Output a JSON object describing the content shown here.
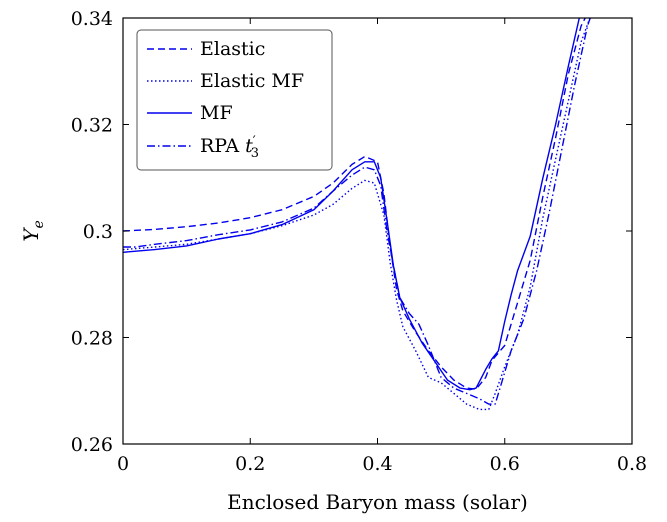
{
  "chart_data": {
    "type": "line",
    "xlabel": "Enclosed Baryon mass (solar)",
    "ylabel": "Y",
    "ylabel_sub": "e",
    "xlim": [
      0,
      0.8
    ],
    "ylim": [
      0.26,
      0.34
    ],
    "x_ticks": [
      "0",
      "0.2",
      "0.4",
      "0.6",
      "0.8"
    ],
    "y_ticks": [
      "0.26",
      "0.28",
      "0.3",
      "0.32",
      "0.34"
    ],
    "grid": false,
    "legend_position": "top-left",
    "line_color": "#0000ee",
    "legend_labels": {
      "elastic": "Elastic",
      "elastic_mf": "Elastic MF",
      "mf": "MF",
      "rpa_main": "RPA ",
      "rpa_t": "t",
      "rpa_prime": "′",
      "rpa_sub": "3"
    },
    "series": [
      {
        "name": "Elastic",
        "dash": "dashed",
        "x": [
          0.0,
          0.05,
          0.1,
          0.15,
          0.2,
          0.25,
          0.3,
          0.33,
          0.36,
          0.38,
          0.4,
          0.41,
          0.42,
          0.43,
          0.44,
          0.46,
          0.48,
          0.5,
          0.52,
          0.54,
          0.555,
          0.57,
          0.58,
          0.6,
          0.62,
          0.64,
          0.66,
          0.68,
          0.7,
          0.72,
          0.735
        ],
        "y": [
          0.3,
          0.3003,
          0.3008,
          0.3015,
          0.3025,
          0.304,
          0.3065,
          0.309,
          0.3125,
          0.314,
          0.313,
          0.307,
          0.297,
          0.289,
          0.285,
          0.281,
          0.2775,
          0.2745,
          0.272,
          0.2705,
          0.2703,
          0.2725,
          0.2757,
          0.2785,
          0.2865,
          0.2945,
          0.3065,
          0.3175,
          0.3295,
          0.3385,
          0.342
        ]
      },
      {
        "name": "Elastic MF",
        "dash": "dotted",
        "x": [
          0.0,
          0.05,
          0.1,
          0.15,
          0.2,
          0.25,
          0.3,
          0.33,
          0.36,
          0.38,
          0.395,
          0.41,
          0.42,
          0.43,
          0.44,
          0.46,
          0.48,
          0.5,
          0.52,
          0.54,
          0.56,
          0.575,
          0.585,
          0.6,
          0.62,
          0.64,
          0.66,
          0.68,
          0.7,
          0.72,
          0.74
        ],
        "y": [
          0.2965,
          0.297,
          0.2975,
          0.2985,
          0.2995,
          0.301,
          0.303,
          0.305,
          0.308,
          0.3095,
          0.309,
          0.303,
          0.294,
          0.287,
          0.282,
          0.2775,
          0.2725,
          0.2715,
          0.2695,
          0.2675,
          0.2665,
          0.2665,
          0.2695,
          0.2745,
          0.2805,
          0.2895,
          0.3025,
          0.3135,
          0.3245,
          0.3355,
          0.342
        ]
      },
      {
        "name": "MF",
        "dash": "solid",
        "x": [
          0.0,
          0.02,
          0.05,
          0.1,
          0.15,
          0.2,
          0.25,
          0.3,
          0.33,
          0.36,
          0.38,
          0.395,
          0.405,
          0.415,
          0.425,
          0.435,
          0.45,
          0.47,
          0.49,
          0.51,
          0.53,
          0.545,
          0.555,
          0.57,
          0.58,
          0.59,
          0.6,
          0.61,
          0.62,
          0.64,
          0.66,
          0.68,
          0.7,
          0.72,
          0.735
        ],
        "y": [
          0.296,
          0.2962,
          0.2965,
          0.2972,
          0.2985,
          0.2995,
          0.3012,
          0.304,
          0.3075,
          0.3115,
          0.313,
          0.313,
          0.31,
          0.302,
          0.2935,
          0.2875,
          0.2835,
          0.279,
          0.2755,
          0.272,
          0.2705,
          0.2702,
          0.2705,
          0.274,
          0.276,
          0.2775,
          0.283,
          0.288,
          0.2925,
          0.299,
          0.31,
          0.32,
          0.331,
          0.3415,
          0.3425
        ]
      },
      {
        "name": "RPA t'3",
        "dash": "dashdot",
        "x": [
          0.0,
          0.02,
          0.05,
          0.1,
          0.15,
          0.2,
          0.25,
          0.3,
          0.33,
          0.36,
          0.38,
          0.395,
          0.405,
          0.415,
          0.425,
          0.435,
          0.45,
          0.465,
          0.48,
          0.5,
          0.52,
          0.54,
          0.56,
          0.575,
          0.585,
          0.595,
          0.61,
          0.63,
          0.65,
          0.67,
          0.69,
          0.71,
          0.73,
          0.74
        ],
        "y": [
          0.297,
          0.297,
          0.2975,
          0.2982,
          0.2993,
          0.3002,
          0.3017,
          0.3043,
          0.3075,
          0.3105,
          0.312,
          0.3115,
          0.3085,
          0.3,
          0.2935,
          0.2875,
          0.2845,
          0.2825,
          0.2785,
          0.2725,
          0.2705,
          0.2695,
          0.2685,
          0.2675,
          0.2675,
          0.2715,
          0.2775,
          0.2835,
          0.2925,
          0.3035,
          0.3155,
          0.3275,
          0.3385,
          0.342
        ]
      }
    ]
  }
}
